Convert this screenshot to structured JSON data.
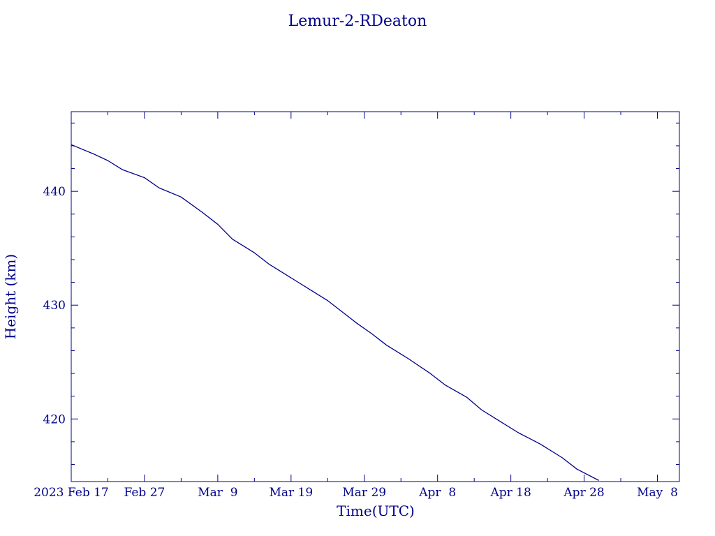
{
  "colors": {
    "ink": "#00008b",
    "background": "#ffffff"
  },
  "chart_data": {
    "type": "line",
    "title": "Lemur-2-RDeaton",
    "xlabel": "Time(UTC)",
    "ylabel": "Height (km)",
    "x_is_date": true,
    "xlim": [
      "2023-02-17",
      "2023-05-11"
    ],
    "ylim": [
      414.5,
      447
    ],
    "x_major_ticks": [
      {
        "date": "2023-02-17",
        "label": "2023 Feb 17"
      },
      {
        "date": "2023-02-27",
        "label": "Feb 27"
      },
      {
        "date": "2023-03-09",
        "label": "Mar  9"
      },
      {
        "date": "2023-03-19",
        "label": "Mar 19"
      },
      {
        "date": "2023-03-29",
        "label": "Mar 29"
      },
      {
        "date": "2023-04-08",
        "label": "Apr  8"
      },
      {
        "date": "2023-04-18",
        "label": "Apr 18"
      },
      {
        "date": "2023-04-28",
        "label": "Apr 28"
      },
      {
        "date": "2023-05-08",
        "label": "May  8"
      }
    ],
    "x_minor_ticks": [
      "2023-02-22",
      "2023-03-04",
      "2023-03-14",
      "2023-03-24",
      "2023-04-03",
      "2023-04-13",
      "2023-04-23",
      "2023-05-03"
    ],
    "y_major_ticks": [
      {
        "value": 420,
        "label": "420"
      },
      {
        "value": 430,
        "label": "430"
      },
      {
        "value": 440,
        "label": "440"
      }
    ],
    "y_minor_ticks": [
      416,
      418,
      422,
      424,
      426,
      428,
      432,
      434,
      436,
      438,
      442,
      444,
      446
    ],
    "grid": false,
    "series": [
      {
        "color": "#00008b",
        "points": [
          [
            "2023-02-17",
            444.1
          ],
          [
            "2023-02-20",
            443.3
          ],
          [
            "2023-02-22",
            442.7
          ],
          [
            "2023-02-24",
            441.9
          ],
          [
            "2023-02-27",
            441.2
          ],
          [
            "2023-03-01",
            440.3
          ],
          [
            "2023-03-04",
            439.5
          ],
          [
            "2023-03-07",
            438.1
          ],
          [
            "2023-03-09",
            437.1
          ],
          [
            "2023-03-11",
            435.8
          ],
          [
            "2023-03-14",
            434.6
          ],
          [
            "2023-03-16",
            433.6
          ],
          [
            "2023-03-18",
            432.8
          ],
          [
            "2023-03-20",
            432.0
          ],
          [
            "2023-03-22",
            431.2
          ],
          [
            "2023-03-24",
            430.4
          ],
          [
            "2023-03-26",
            429.4
          ],
          [
            "2023-03-28",
            428.4
          ],
          [
            "2023-03-30",
            427.5
          ],
          [
            "2023-04-01",
            426.5
          ],
          [
            "2023-04-04",
            425.3
          ],
          [
            "2023-04-07",
            424.0
          ],
          [
            "2023-04-09",
            423.0
          ],
          [
            "2023-04-12",
            421.9
          ],
          [
            "2023-04-14",
            420.8
          ],
          [
            "2023-04-16",
            420.0
          ],
          [
            "2023-04-19",
            418.8
          ],
          [
            "2023-04-22",
            417.8
          ],
          [
            "2023-04-25",
            416.6
          ],
          [
            "2023-04-27",
            415.6
          ],
          [
            "2023-04-30",
            414.6
          ]
        ]
      }
    ]
  }
}
